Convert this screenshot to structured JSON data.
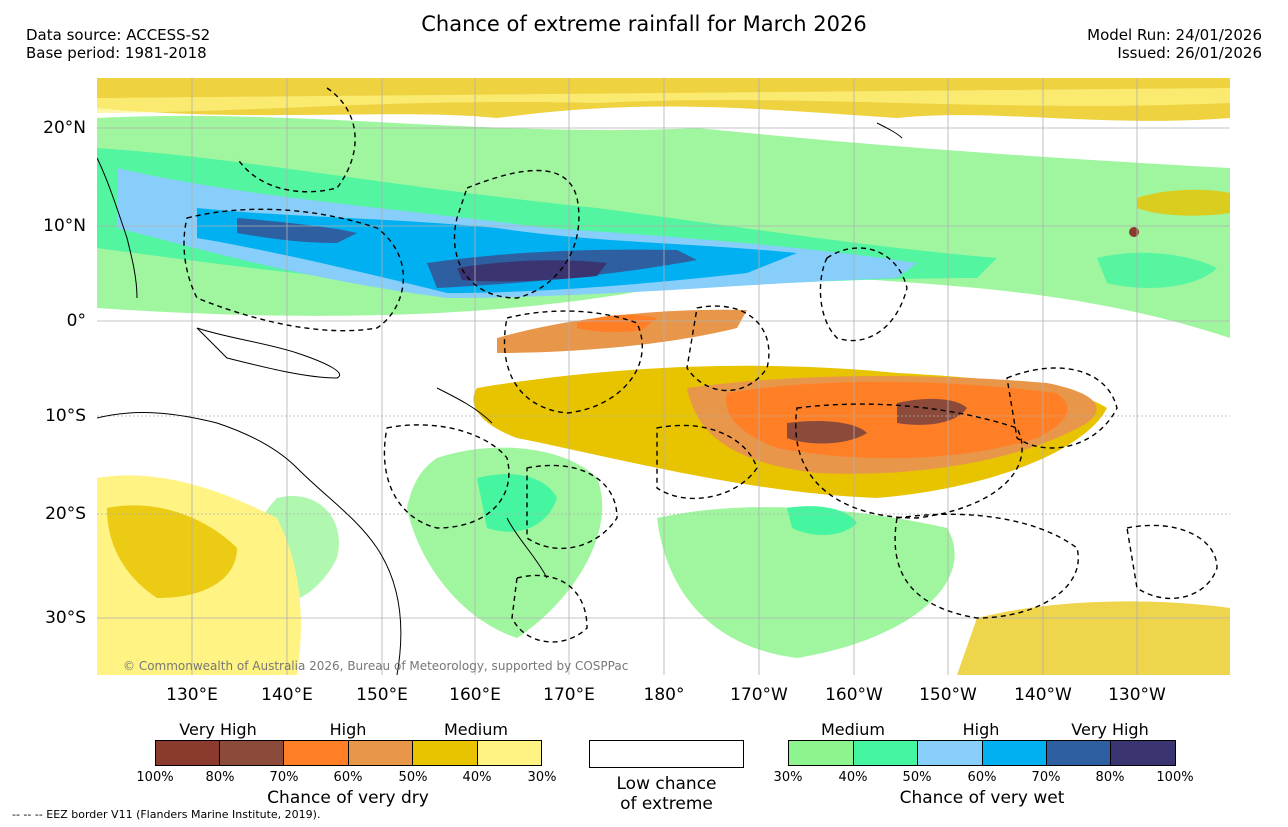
{
  "header": {
    "title": "Chance of extreme rainfall for March 2026",
    "data_source": "Data source: ACCESS-S2",
    "base_period": "Base period: 1981-2018",
    "model_run": "Model Run: 24/01/2026",
    "issued": "Issued: 26/01/2026"
  },
  "map": {
    "lat_labels": [
      "20°N",
      "10°N",
      "0°",
      "10°S",
      "20°S",
      "30°S"
    ],
    "lon_labels": [
      "130°E",
      "140°E",
      "150°E",
      "160°E",
      "170°E",
      "180°",
      "170°W",
      "160°W",
      "150°W",
      "140°W",
      "130°W"
    ],
    "copyright": "© Commonwealth of Australia 2026, Bureau of Meteorology, supported by COSPPac"
  },
  "legend": {
    "dry": {
      "categories": [
        "Very High",
        "High",
        "Medium"
      ],
      "ticks": [
        "100%",
        "80%",
        "70%",
        "60%",
        "50%",
        "40%",
        "30%"
      ],
      "colors": [
        "#8b3a2e",
        "#8b4a3a",
        "#ff7f27",
        "#e8964a",
        "#e8c300",
        "#fff383"
      ],
      "title": "Chance of very dry"
    },
    "low": {
      "line1": "Low chance",
      "line2": "of extreme"
    },
    "wet": {
      "categories": [
        "Medium",
        "High",
        "Very High"
      ],
      "ticks": [
        "30%",
        "40%",
        "50%",
        "60%",
        "70%",
        "80%",
        "100%"
      ],
      "colors": [
        "#8ef58e",
        "#45f5a0",
        "#87cefa",
        "#00b0f0",
        "#2e5fa0",
        "#3a3570"
      ],
      "title": "Chance of very wet"
    }
  },
  "footer": {
    "eez": "--  --  -- EEZ border V11 (Flanders Marine Institute, 2019)."
  }
}
